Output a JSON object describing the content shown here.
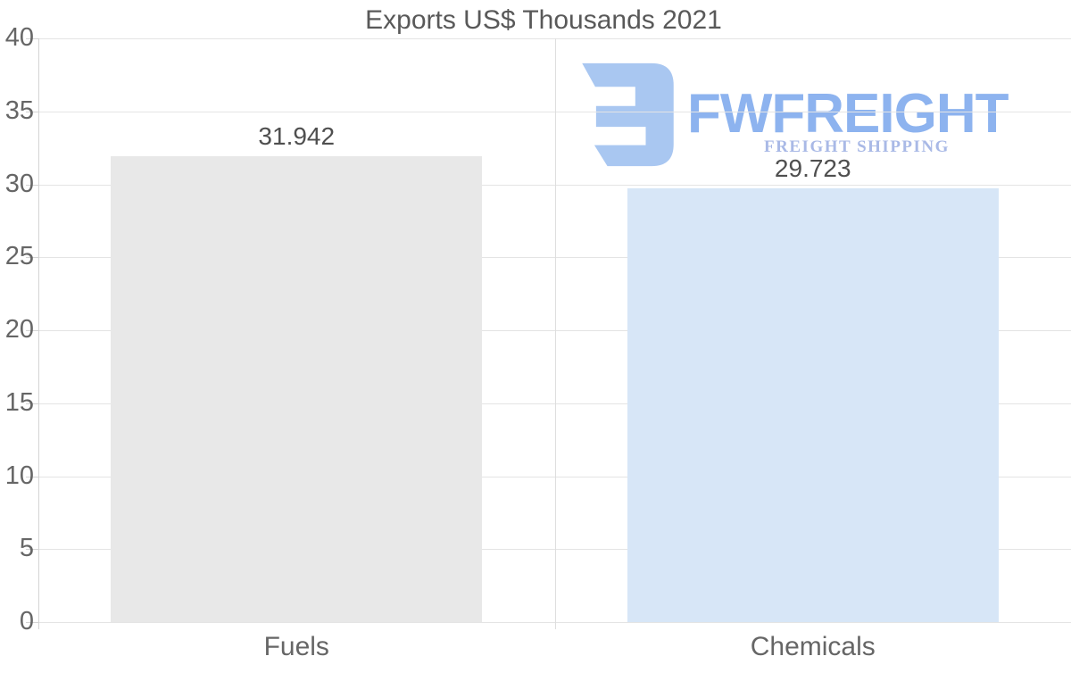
{
  "title": "Exports US$ Thousands 2021",
  "watermark": {
    "brand": "FWFREIGHT",
    "tagline": "FREIGHT SHIPPING",
    "icon_color": "#a9c7f1",
    "brand_color": "#8db3ef",
    "tagline_color": "#a9b9e6"
  },
  "chart_data": {
    "type": "bar",
    "title": "Exports US$ Thousands 2021",
    "categories": [
      "Fuels",
      "Chemicals"
    ],
    "values": [
      31.942,
      29.723
    ],
    "data_labels": [
      "31.942",
      "29.723"
    ],
    "bar_colors": [
      "#e8e8e8",
      "#d7e6f7"
    ],
    "ylim": [
      0,
      40
    ],
    "yticks": [
      0,
      5,
      10,
      15,
      20,
      25,
      30,
      35,
      40
    ],
    "xlabel": "",
    "ylabel": "",
    "grid": true,
    "legend": false,
    "colors": {
      "gridline": "#e4e4e4",
      "axis": "#d4d4d4",
      "tick_text": "#666666",
      "title_text": "#595959",
      "data_label_text": "#4f4f4f"
    }
  }
}
